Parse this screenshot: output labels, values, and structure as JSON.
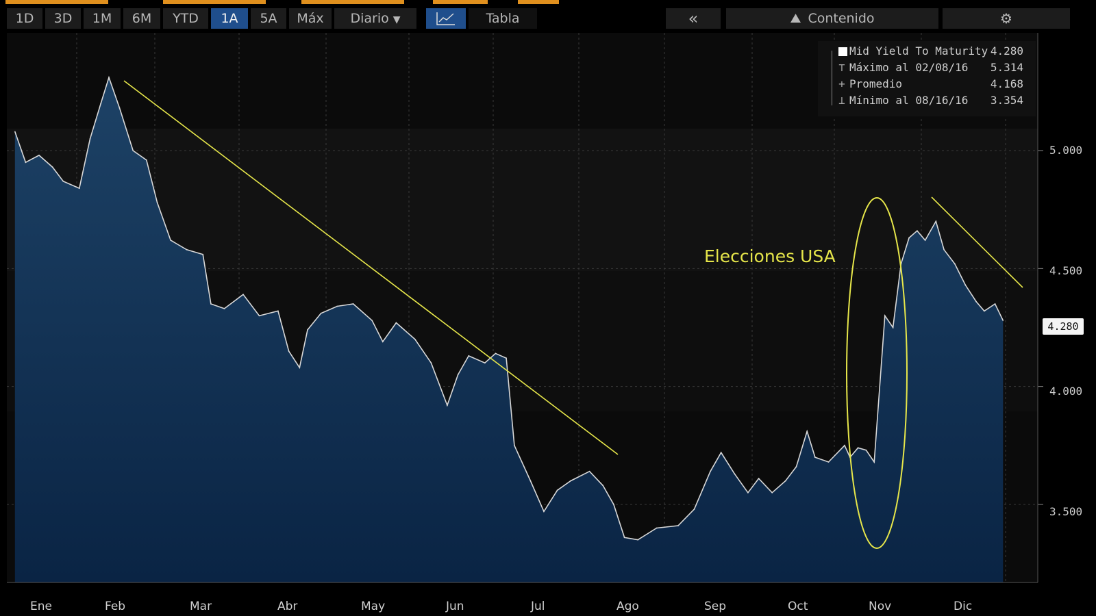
{
  "toolbar": {
    "range_buttons": [
      "1D",
      "3D",
      "1M",
      "6M",
      "YTD",
      "1A",
      "5A",
      "Máx"
    ],
    "active_range": "1A",
    "period_label": "Diario",
    "table_label": "Tabla",
    "content_label": "Contenido"
  },
  "legend": {
    "rows": [
      {
        "label": "Mid Yield To Maturity",
        "value": "4.280"
      },
      {
        "label": "Máximo al 02/08/16",
        "value": "5.314"
      },
      {
        "label": "Promedio",
        "value": "4.168"
      },
      {
        "label": "Mínimo al 08/16/16",
        "value": "3.354"
      }
    ]
  },
  "last_value_badge": "4.280",
  "annotation": "Elecciones USA",
  "colors": {
    "line": "#d8d8d8",
    "area": "#1a3a5c",
    "trendline": "#e6e64a",
    "background": "#0b0b0b",
    "accent": "#1f4e8c"
  },
  "chart_data": {
    "type": "area",
    "title": "",
    "xlabel": "",
    "ylabel": "",
    "x_ticks": [
      "Ene",
      "Feb",
      "Mar",
      "Abr",
      "May",
      "Jun",
      "Jul",
      "Ago",
      "Sep",
      "Oct",
      "Nov",
      "Dic"
    ],
    "y_ticks": [
      "5.000",
      "4.500",
      "4.000",
      "3.500"
    ],
    "ylim": [
      3.25,
      5.55
    ],
    "grid": true,
    "legend_position": "top-right",
    "series": [
      {
        "name": "Mid Yield To Maturity",
        "points": [
          [
            "2016-01-04",
            5.08
          ],
          [
            "2016-01-08",
            4.95
          ],
          [
            "2016-01-13",
            4.98
          ],
          [
            "2016-01-18",
            4.93
          ],
          [
            "2016-01-22",
            4.87
          ],
          [
            "2016-01-28",
            4.84
          ],
          [
            "2016-02-01",
            5.05
          ],
          [
            "2016-02-05",
            5.2
          ],
          [
            "2016-02-08",
            5.31
          ],
          [
            "2016-02-12",
            5.18
          ],
          [
            "2016-02-17",
            5.0
          ],
          [
            "2016-02-22",
            4.96
          ],
          [
            "2016-02-26",
            4.78
          ],
          [
            "2016-03-02",
            4.62
          ],
          [
            "2016-03-08",
            4.58
          ],
          [
            "2016-03-14",
            4.56
          ],
          [
            "2016-03-17",
            4.35
          ],
          [
            "2016-03-22",
            4.33
          ],
          [
            "2016-03-29",
            4.39
          ],
          [
            "2016-04-04",
            4.3
          ],
          [
            "2016-04-11",
            4.32
          ],
          [
            "2016-04-15",
            4.15
          ],
          [
            "2016-04-19",
            4.08
          ],
          [
            "2016-04-22",
            4.24
          ],
          [
            "2016-04-27",
            4.31
          ],
          [
            "2016-05-03",
            4.34
          ],
          [
            "2016-05-09",
            4.35
          ],
          [
            "2016-05-16",
            4.28
          ],
          [
            "2016-05-20",
            4.19
          ],
          [
            "2016-05-25",
            4.27
          ],
          [
            "2016-06-01",
            4.2
          ],
          [
            "2016-06-07",
            4.1
          ],
          [
            "2016-06-13",
            3.92
          ],
          [
            "2016-06-17",
            4.05
          ],
          [
            "2016-06-21",
            4.13
          ],
          [
            "2016-06-27",
            4.1
          ],
          [
            "2016-07-01",
            4.14
          ],
          [
            "2016-07-05",
            4.12
          ],
          [
            "2016-07-08",
            3.75
          ],
          [
            "2016-07-14",
            3.6
          ],
          [
            "2016-07-19",
            3.47
          ],
          [
            "2016-07-24",
            3.56
          ],
          [
            "2016-07-29",
            3.6
          ],
          [
            "2016-08-05",
            3.64
          ],
          [
            "2016-08-10",
            3.58
          ],
          [
            "2016-08-14",
            3.5
          ],
          [
            "2016-08-18",
            3.36
          ],
          [
            "2016-08-23",
            3.35
          ],
          [
            "2016-08-30",
            3.4
          ],
          [
            "2016-09-07",
            3.41
          ],
          [
            "2016-09-13",
            3.48
          ],
          [
            "2016-09-19",
            3.64
          ],
          [
            "2016-09-23",
            3.72
          ],
          [
            "2016-09-28",
            3.63
          ],
          [
            "2016-10-03",
            3.55
          ],
          [
            "2016-10-07",
            3.61
          ],
          [
            "2016-10-12",
            3.55
          ],
          [
            "2016-10-17",
            3.6
          ],
          [
            "2016-10-21",
            3.66
          ],
          [
            "2016-10-25",
            3.81
          ],
          [
            "2016-10-28",
            3.7
          ],
          [
            "2016-11-02",
            3.68
          ],
          [
            "2016-11-08",
            3.75
          ],
          [
            "2016-11-10",
            3.7
          ],
          [
            "2016-11-13",
            3.74
          ],
          [
            "2016-11-16",
            3.73
          ],
          [
            "2016-11-19",
            3.68
          ],
          [
            "2016-11-23",
            4.3
          ],
          [
            "2016-11-26",
            4.25
          ],
          [
            "2016-11-29",
            4.52
          ],
          [
            "2016-12-02",
            4.63
          ],
          [
            "2016-12-05",
            4.66
          ],
          [
            "2016-12-08",
            4.62
          ],
          [
            "2016-12-12",
            4.7
          ],
          [
            "2016-12-15",
            4.58
          ],
          [
            "2016-12-19",
            4.52
          ],
          [
            "2016-12-23",
            4.43
          ],
          [
            "2016-12-27",
            4.36
          ],
          [
            "2016-12-30",
            4.32
          ],
          [
            "2017-01-03",
            4.35
          ],
          [
            "2017-01-06",
            4.28
          ]
        ]
      }
    ]
  }
}
